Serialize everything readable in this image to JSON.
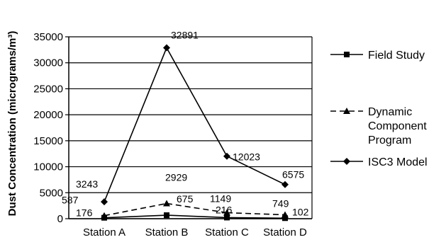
{
  "chart_data": {
    "type": "line",
    "title": "",
    "xlabel": "",
    "ylabel": "Dust Concentration (micrograms/m³)",
    "categories": [
      "Station A",
      "Station B",
      "Station C",
      "Station D"
    ],
    "ylim": [
      0,
      35000
    ],
    "yticks": [
      0,
      5000,
      10000,
      15000,
      20000,
      25000,
      30000,
      35000
    ],
    "grid": true,
    "legend_position": "right",
    "series": [
      {
        "name": "Field Study",
        "values": [
          176,
          675,
          216,
          102
        ],
        "marker": "square",
        "line_style": "solid",
        "color": "#000000"
      },
      {
        "name": "Dynamic Component Program",
        "legend_lines": [
          "Dynamic",
          "Component",
          "Program"
        ],
        "values": [
          587,
          2929,
          1149,
          749
        ],
        "marker": "triangle",
        "line_style": "dashed",
        "color": "#000000"
      },
      {
        "name": "ISC3 Model",
        "values": [
          3243,
          32891,
          12023,
          6575
        ],
        "marker": "diamond",
        "line_style": "solid",
        "color": "#000000"
      }
    ]
  }
}
